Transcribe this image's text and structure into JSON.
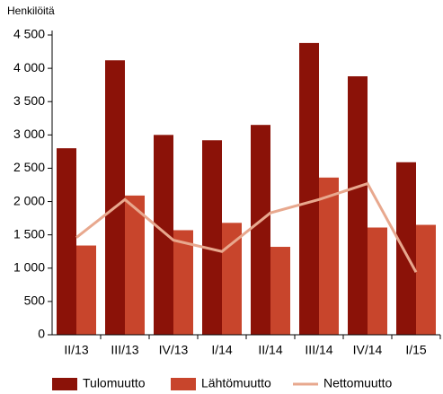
{
  "chart_data": {
    "type": "bar_line",
    "y_axis_label": "Henkilöitä",
    "categories": [
      "II/13",
      "III/13",
      "IV/13",
      "I/14",
      "II/14",
      "III/14",
      "IV/14",
      "I/15"
    ],
    "series": [
      {
        "name": "Tulomuutto",
        "color": "#8b1208",
        "type": "bar",
        "values": [
          2800,
          4120,
          3000,
          2920,
          3150,
          4380,
          3880,
          2590
        ]
      },
      {
        "name": "Lähtömuutto",
        "color": "#c8452c",
        "type": "bar",
        "values": [
          1340,
          2090,
          1570,
          1680,
          1320,
          2360,
          1610,
          1650
        ]
      },
      {
        "name": "Nettomuutto",
        "color": "#e8a88e",
        "type": "line",
        "values": [
          1460,
          2030,
          1420,
          1250,
          1830,
          2030,
          2270,
          940
        ]
      }
    ],
    "ylim": [
      0,
      4500
    ],
    "yticks": [
      0,
      500,
      {
        "value": 1000,
        "label": "1 000"
      },
      {
        "value": 1500,
        "label": "1 500"
      },
      {
        "value": 2000,
        "label": "2 000"
      },
      {
        "value": 2500,
        "label": "2 500"
      },
      {
        "value": 3000,
        "label": "3 000"
      },
      {
        "value": 3500,
        "label": "3 500"
      },
      {
        "value": 4000,
        "label": "4 000"
      },
      {
        "value": 4500,
        "label": "4 500"
      }
    ]
  }
}
